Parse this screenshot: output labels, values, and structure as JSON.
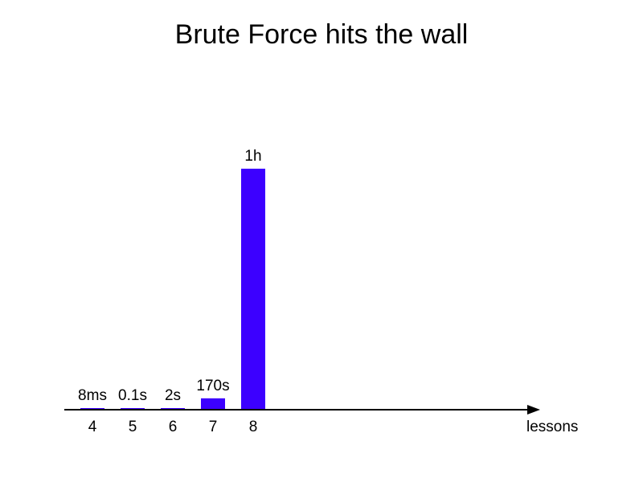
{
  "chart_data": {
    "type": "bar",
    "title": "Brute Force hits the wall",
    "xlabel": "lessons",
    "ylabel": "",
    "categories": [
      "4",
      "5",
      "6",
      "7",
      "8"
    ],
    "values": [
      0.008,
      0.1,
      2,
      170,
      3600
    ],
    "data_labels": [
      "8ms",
      "0.1s",
      "2s",
      "170s",
      "1h"
    ],
    "ylim": [
      0,
      3600
    ],
    "grid": false,
    "legend": "none",
    "bar_color": "#3c00ff",
    "axis_color": "#000000"
  }
}
